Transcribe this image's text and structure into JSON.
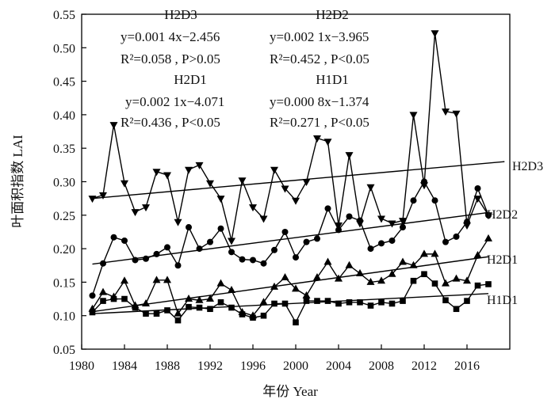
{
  "chart_data": {
    "type": "line",
    "xlabel": "年份 Year",
    "ylabel": "叶面积指数 LAI",
    "xlim": [
      1980,
      2020
    ],
    "ylim": [
      0.05,
      0.55
    ],
    "xticks": [
      "1980",
      "1984",
      "1988",
      "1992",
      "1996",
      "2000",
      "2004",
      "2008",
      "2012",
      "2016"
    ],
    "yticks": [
      "0.05",
      "0.10",
      "0.15",
      "0.20",
      "0.25",
      "0.30",
      "0.35",
      "0.40",
      "0.45",
      "0.50",
      "0.55"
    ],
    "x": [
      1981,
      1982,
      1983,
      1984,
      1985,
      1986,
      1987,
      1988,
      1989,
      1990,
      1991,
      1992,
      1993,
      1994,
      1995,
      1996,
      1997,
      1998,
      1999,
      2000,
      2001,
      2002,
      2003,
      2004,
      2005,
      2006,
      2007,
      2008,
      2009,
      2010,
      2011,
      2012,
      2013,
      2014,
      2015,
      2016,
      2017,
      2018
    ],
    "series": [
      {
        "name": "H2D3",
        "marker": "triangle-down",
        "values": [
          0.275,
          0.28,
          0.385,
          0.298,
          0.255,
          0.262,
          0.315,
          0.31,
          0.24,
          0.318,
          0.325,
          0.298,
          0.275,
          0.212,
          0.302,
          0.262,
          0.245,
          0.318,
          0.29,
          0.272,
          0.3,
          0.365,
          0.36,
          0.235,
          0.34,
          0.238,
          0.292,
          0.245,
          0.238,
          0.242,
          0.4,
          0.295,
          0.522,
          0.405,
          0.402,
          0.235,
          0.275,
          0.25
        ],
        "trend": {
          "start": 0.275,
          "end": 0.33,
          "equation": "y=0.001 4x−2.456",
          "stats": "R²=0.058 , P>0.05"
        }
      },
      {
        "name": "H2D2",
        "marker": "circle",
        "values": [
          0.13,
          0.178,
          0.217,
          0.212,
          0.183,
          0.185,
          0.192,
          0.202,
          0.175,
          0.232,
          0.2,
          0.21,
          0.23,
          0.195,
          0.184,
          0.183,
          0.178,
          0.198,
          0.225,
          0.187,
          0.21,
          0.215,
          0.26,
          0.228,
          0.248,
          0.242,
          0.2,
          0.208,
          0.212,
          0.232,
          0.272,
          0.3,
          0.272,
          0.21,
          0.218,
          0.24,
          0.29,
          0.25
        ],
        "trend": {
          "start": 0.177,
          "end": 0.254,
          "equation": "y=0.002 1x−3.965",
          "stats": "R²=0.452 , P<0.05"
        }
      },
      {
        "name": "H2D1",
        "marker": "triangle-up",
        "values": [
          0.11,
          0.135,
          0.128,
          0.152,
          0.115,
          0.118,
          0.153,
          0.153,
          0.103,
          0.125,
          0.123,
          0.125,
          0.148,
          0.138,
          0.105,
          0.1,
          0.12,
          0.143,
          0.157,
          0.14,
          0.13,
          0.157,
          0.18,
          0.155,
          0.175,
          0.163,
          0.15,
          0.152,
          0.162,
          0.18,
          0.175,
          0.192,
          0.192,
          0.148,
          0.155,
          0.152,
          0.19,
          0.215
        ],
        "trend": {
          "start": 0.106,
          "end": 0.188,
          "equation": "y=0.002 1x−4.071",
          "stats": "R²=0.436 , P<0.05"
        }
      },
      {
        "name": "H1D1",
        "marker": "square",
        "values": [
          0.105,
          0.122,
          0.125,
          0.125,
          0.112,
          0.103,
          0.103,
          0.108,
          0.093,
          0.113,
          0.112,
          0.11,
          0.12,
          0.112,
          0.102,
          0.097,
          0.1,
          0.118,
          0.118,
          0.09,
          0.122,
          0.122,
          0.122,
          0.118,
          0.12,
          0.12,
          0.115,
          0.12,
          0.118,
          0.122,
          0.152,
          0.162,
          0.148,
          0.123,
          0.11,
          0.122,
          0.145,
          0.147
        ],
        "trend": {
          "start": 0.103,
          "end": 0.133,
          "equation": "y=0.000 8x−1.374",
          "stats": "R²=0.271 , P<0.05"
        }
      }
    ]
  }
}
